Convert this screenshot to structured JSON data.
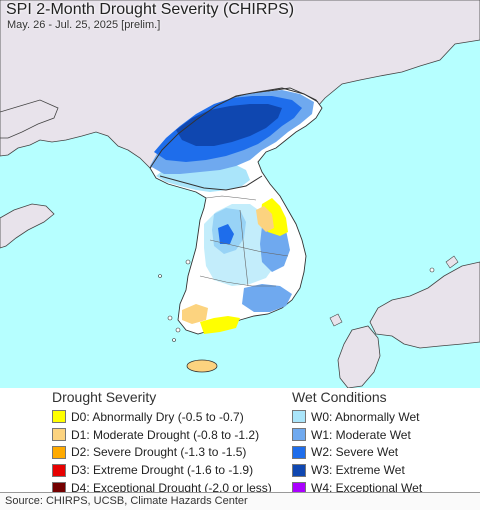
{
  "title": "SPI 2-Month Drought Severity (CHIRPS)",
  "subtitle": "May. 26 - Jul. 25, 2025 [prelim.]",
  "map_colors": {
    "sea": "#b6ffff",
    "land_outside": "#e8e3eb",
    "land_normal": "#ffffff",
    "border": "#333333"
  },
  "drought_legend": {
    "heading": "Drought Severity",
    "items": [
      {
        "label": "D0: Abnormally Dry (-0.5 to -0.7)",
        "color": "#ffff00"
      },
      {
        "label": "D1: Moderate Drought (-0.8 to -1.2)",
        "color": "#fcd37f"
      },
      {
        "label": "D2: Severe Drought (-1.3 to -1.5)",
        "color": "#ffaa00"
      },
      {
        "label": "D3: Extreme Drought (-1.6 to -1.9)",
        "color": "#e60000"
      },
      {
        "label": "D4: Exceptional Drought (-2.0 or less)",
        "color": "#730000"
      }
    ]
  },
  "wet_legend": {
    "heading": "Wet Conditions",
    "items": [
      {
        "label": "W0: Abnormally Wet",
        "color": "#aae5fa"
      },
      {
        "label": "W1: Moderate Wet",
        "color": "#6fa9ef"
      },
      {
        "label": "W2: Severe Wet",
        "color": "#1e6deb"
      },
      {
        "label": "W3: Extreme Wet",
        "color": "#0f47b0"
      },
      {
        "label": "W4: Exceptional Wet",
        "color": "#aa00ff"
      }
    ]
  },
  "footer": "Source: CHIRPS, UCSB, Climate Hazards Center"
}
